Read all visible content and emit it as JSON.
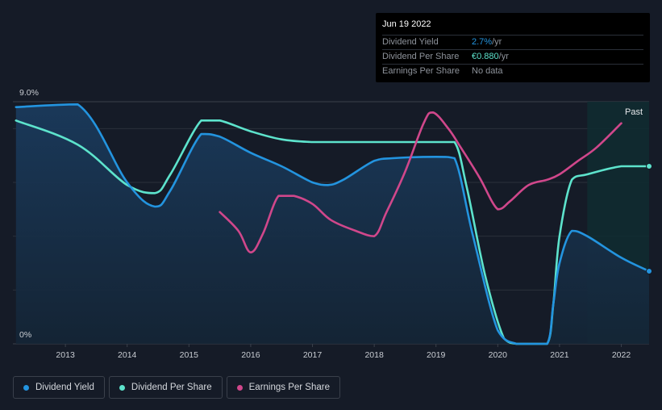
{
  "chart_data": {
    "type": "line",
    "title": "",
    "xlabel": "",
    "ylabel": "",
    "x_ticks": [
      "2013",
      "2014",
      "2015",
      "2016",
      "2017",
      "2018",
      "2019",
      "2020",
      "2021",
      "2022"
    ],
    "xlim": [
      2012.15,
      2022.45
    ],
    "ylim": [
      0,
      9.0
    ],
    "y_tick_labels": [
      "9.0%",
      "0%"
    ],
    "past_label": "Past",
    "past_start": 2021.45,
    "series": [
      {
        "name": "Dividend Yield",
        "color": "#2394df",
        "x": [
          2012.2,
          2013.2,
          2014.0,
          2014.45,
          2014.7,
          2015.2,
          2015.5,
          2016.0,
          2016.5,
          2017.0,
          2017.25,
          2017.5,
          2018.0,
          2018.3,
          2019.0,
          2019.3,
          2019.6,
          2020.0,
          2020.3,
          2020.5,
          2020.8,
          2020.9,
          2021.0,
          2021.2,
          2021.45,
          2022.0,
          2022.45
        ],
        "y": [
          8.8,
          8.9,
          6.0,
          5.1,
          5.7,
          7.8,
          7.7,
          7.1,
          6.6,
          6.0,
          5.9,
          6.1,
          6.8,
          6.9,
          6.95,
          6.9,
          4.0,
          0.5,
          0.0,
          0.0,
          0.0,
          1.5,
          3.0,
          4.2,
          4.0,
          3.2,
          2.7
        ]
      },
      {
        "name": "Dividend Per Share",
        "color": "#5de3cc",
        "x": [
          2012.2,
          2013.2,
          2014.0,
          2014.45,
          2014.7,
          2015.2,
          2015.5,
          2016.0,
          2016.5,
          2017.0,
          2017.5,
          2018.0,
          2018.5,
          2019.0,
          2019.3,
          2019.5,
          2019.8,
          2020.1,
          2020.3,
          2020.5,
          2020.8,
          2020.9,
          2021.0,
          2021.2,
          2021.45,
          2022.0,
          2022.45
        ],
        "y": [
          8.3,
          7.4,
          5.9,
          5.6,
          6.3,
          8.3,
          8.3,
          7.9,
          7.6,
          7.5,
          7.5,
          7.5,
          7.5,
          7.5,
          7.5,
          5.8,
          2.5,
          0.2,
          0.0,
          0.0,
          0.0,
          1.5,
          4.0,
          6.1,
          6.3,
          6.6,
          6.6
        ]
      },
      {
        "name": "Earnings Per Share",
        "color": "#d0478b",
        "x": [
          2015.5,
          2015.8,
          2016.0,
          2016.2,
          2016.45,
          2016.7,
          2017.0,
          2017.3,
          2017.7,
          2018.0,
          2018.2,
          2018.5,
          2018.8,
          2018.95,
          2019.2,
          2019.4,
          2019.7,
          2020.0,
          2020.2,
          2020.5,
          2020.8,
          2021.0,
          2021.3,
          2021.6,
          2022.0
        ],
        "y": [
          4.9,
          4.2,
          3.4,
          4.1,
          5.5,
          5.5,
          5.2,
          4.6,
          4.2,
          4.0,
          4.9,
          6.4,
          8.2,
          8.6,
          8.0,
          7.3,
          6.2,
          5.0,
          5.3,
          5.9,
          6.1,
          6.3,
          6.8,
          7.3,
          8.2
        ]
      }
    ]
  },
  "tooltip": {
    "date": "Jun 19 2022",
    "rows": [
      {
        "label": "Dividend Yield",
        "value": "2.7%",
        "unit": " /yr",
        "color": "#2394df"
      },
      {
        "label": "Dividend Per Share",
        "value": "€0.880",
        "unit": " /yr",
        "color": "#5de3cc"
      },
      {
        "label": "Earnings Per Share",
        "value": "No data",
        "unit": "",
        "color": "#8e939b"
      }
    ]
  },
  "legend": [
    {
      "label": "Dividend Yield",
      "color": "#2394df"
    },
    {
      "label": "Dividend Per Share",
      "color": "#5de3cc"
    },
    {
      "label": "Earnings Per Share",
      "color": "#d0478b"
    }
  ]
}
